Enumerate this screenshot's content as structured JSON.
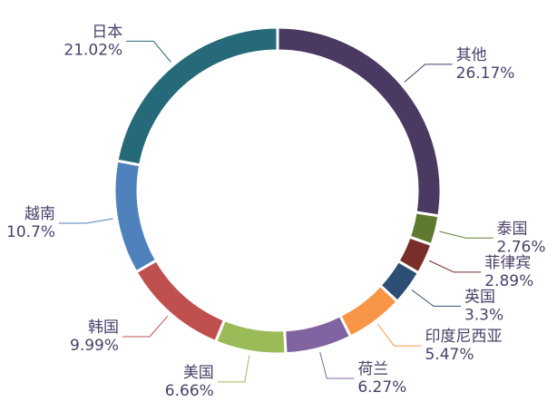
{
  "chart_data": {
    "type": "donut",
    "categories": [
      "其他",
      "泰国",
      "菲律宾",
      "英国",
      "印度尼西亚",
      "荷兰",
      "美国",
      "韩国",
      "越南",
      "日本"
    ],
    "values": [
      26.17,
      2.76,
      2.89,
      3.3,
      5.47,
      6.27,
      6.66,
      9.99,
      10.7,
      21.02
    ],
    "value_labels": [
      "26.17%",
      "2.76%",
      "2.89%",
      "3.3%",
      "5.47%",
      "6.27%",
      "6.66%",
      "9.99%",
      "10.7%",
      "21.02%"
    ],
    "colors": [
      "#4a3a62",
      "#5e7a2f",
      "#7a2e2a",
      "#2d4e75",
      "#f79646",
      "#8064a2",
      "#9bbb59",
      "#c0504d",
      "#4f81bd",
      "#266a7a"
    ]
  }
}
